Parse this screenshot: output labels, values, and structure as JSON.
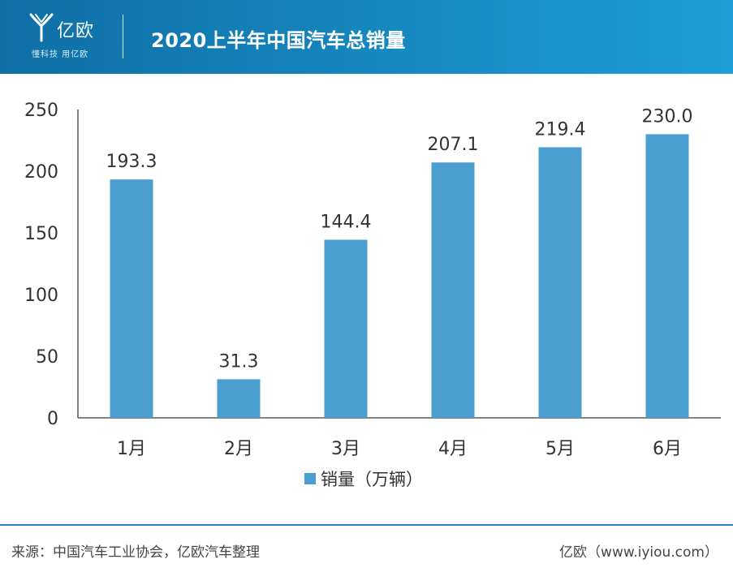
{
  "header": {
    "logo_text": "亿欧",
    "logo_slogan": "懂科技 用亿欧",
    "title": "2020上半年中国汽车总销量"
  },
  "chart_data": {
    "type": "bar",
    "categories": [
      "1月",
      "2月",
      "3月",
      "4月",
      "5月",
      "6月"
    ],
    "series": [
      {
        "name": "销量（万辆）",
        "values": [
          193.3,
          31.3,
          144.4,
          207.1,
          219.4,
          230.0
        ]
      }
    ],
    "data_labels": [
      "193.3",
      "31.3",
      "144.4",
      "207.1",
      "219.4",
      "230.0"
    ],
    "ylim": [
      0,
      250
    ],
    "yticks": [
      0,
      50,
      100,
      150,
      200,
      250
    ],
    "grid": false,
    "legend": "bottom",
    "bar_color": "#4a9fd0"
  },
  "footer": {
    "source": "来源：中国汽车工业协会，亿欧汽车整理",
    "brand": "亿欧（www.iyiou.com）"
  }
}
